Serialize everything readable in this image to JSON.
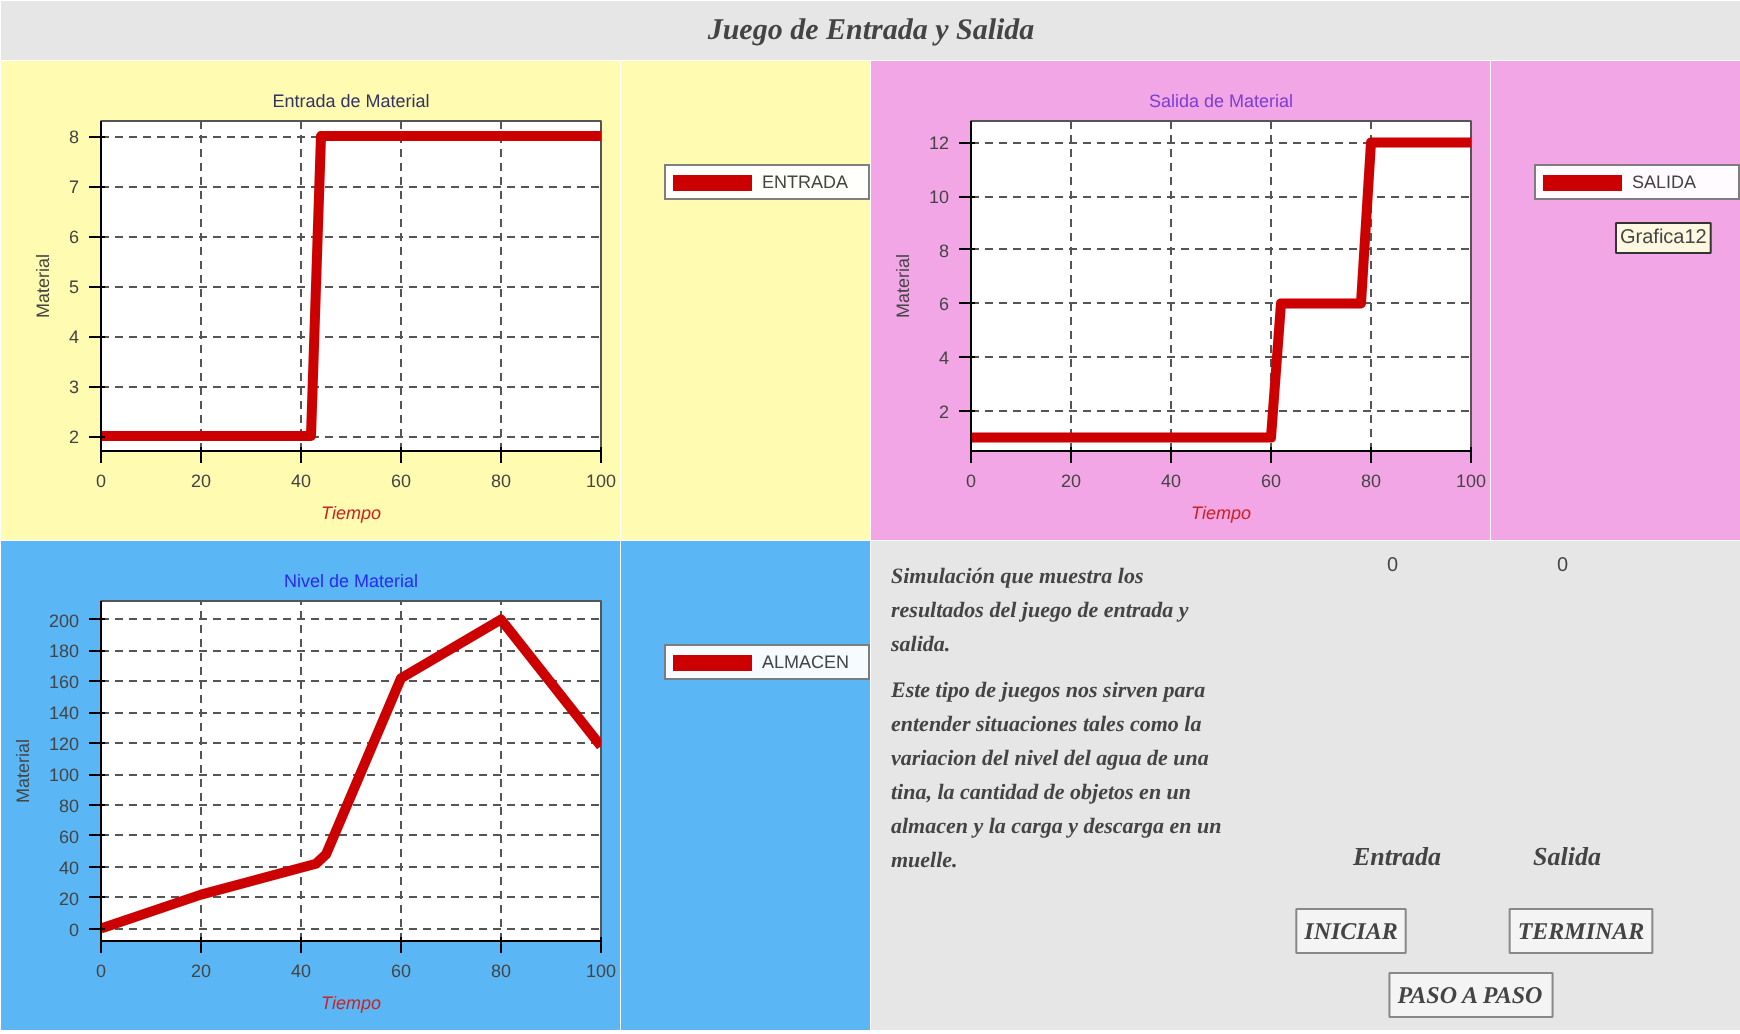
{
  "chart_data": [
    {
      "type": "other",
      "title": "Juego de Entrada y Salida"
    },
    {
      "type": "line",
      "title": "Entrada de Material",
      "xlabel": "Tiempo",
      "ylabel": "Material",
      "x": [
        0,
        42,
        44,
        100
      ],
      "series": [
        {
          "name": "ENTRADA",
          "color": "#cc0000",
          "values": [
            2,
            2,
            8,
            8
          ]
        }
      ],
      "xlim": [
        0,
        100
      ],
      "xticks": [
        0,
        20,
        40,
        60,
        80,
        100
      ],
      "ylim": [
        1.7,
        8.3
      ],
      "yticks": [
        2,
        3,
        4,
        5,
        6,
        7,
        8
      ],
      "grid": true,
      "legend": "top right",
      "line_style": "solid"
    },
    {
      "type": "line",
      "title": "Salida de Material",
      "xlabel": "Tiempo",
      "ylabel": "Material",
      "x": [
        0,
        60,
        62,
        78,
        80,
        100
      ],
      "series": [
        {
          "name": "SALIDA",
          "color": "#cc0000",
          "values": [
            1,
            1,
            6,
            6,
            12,
            12
          ]
        }
      ],
      "xlim": [
        0,
        100
      ],
      "xticks": [
        0,
        20,
        40,
        60,
        80,
        100
      ],
      "ylim": [
        0.5,
        12.8
      ],
      "yticks": [
        2,
        4,
        6,
        8,
        10,
        12
      ],
      "grid": true,
      "legend": "top right",
      "line_style": "solid",
      "annotations": [
        "Grafica12"
      ]
    },
    {
      "type": "line",
      "title": "Nivel de Material",
      "xlabel": "Tiempo",
      "ylabel": "Material",
      "x": [
        0,
        20,
        43,
        45,
        60,
        80,
        100
      ],
      "series": [
        {
          "name": "ALMACEN",
          "color": "#cc0000",
          "values": [
            0,
            22,
            42,
            48,
            162,
            200,
            118
          ]
        }
      ],
      "xlim": [
        0,
        100
      ],
      "xticks": [
        0,
        20,
        40,
        60,
        80,
        100
      ],
      "ylim": [
        -8,
        212
      ],
      "yticks": [
        0,
        20,
        40,
        60,
        80,
        100,
        120,
        140,
        160,
        180,
        200
      ],
      "grid": true,
      "legend": "top right",
      "line_style": "solid"
    },
    {
      "type": "other",
      "annotations": [
        "Simulación que muestra los resultados del juego de entrada y salida.",
        "Este tipo de juegos nos sirven para entender situaciones tales como la variacion del nivel del agua de una tina, la cantidad de objetos en un almacen y la carga y descarga en un muelle.",
        "0",
        "0",
        "Entrada",
        "Salida",
        "INICIAR",
        "TERMINAR",
        "PASO A PASO"
      ]
    }
  ]
}
